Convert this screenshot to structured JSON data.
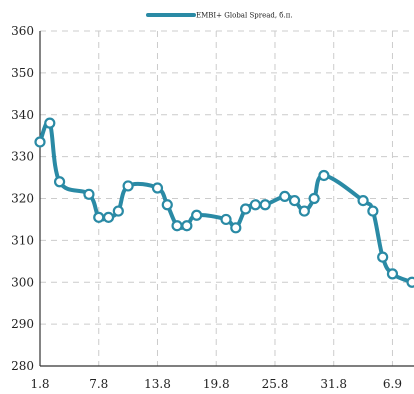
{
  "chart_data": {
    "type": "line",
    "title": "",
    "xlabel": "",
    "ylabel": "",
    "ylim": [
      280,
      360
    ],
    "yticks": [
      280,
      290,
      300,
      310,
      320,
      330,
      340,
      350,
      360
    ],
    "grid": true,
    "legend_position": "top-center",
    "x_tick_labels": [
      "1.8",
      "7.8",
      "13.8",
      "19.8",
      "25.8",
      "31.8",
      "6.9"
    ],
    "x_tick_indices": [
      0,
      6,
      12,
      18,
      24,
      30,
      36
    ],
    "series": [
      {
        "name": "EMBI+ Global Spread, б.п.",
        "color": "#2a8aa5",
        "x": [
          0,
          1,
          2,
          5,
          6,
          7,
          8,
          9,
          12,
          13,
          14,
          15,
          16,
          19,
          20,
          21,
          22,
          23,
          25,
          26,
          27,
          28,
          29,
          33,
          34,
          35,
          36,
          38
        ],
        "values": [
          333.5,
          338,
          324,
          321,
          315.5,
          315.5,
          317,
          323,
          322.5,
          318.5,
          313.5,
          313.5,
          316,
          315,
          313,
          317.5,
          318.5,
          318.5,
          320.5,
          319.5,
          317,
          320,
          325.5,
          319.5,
          317,
          306,
          302,
          300
        ]
      }
    ]
  }
}
